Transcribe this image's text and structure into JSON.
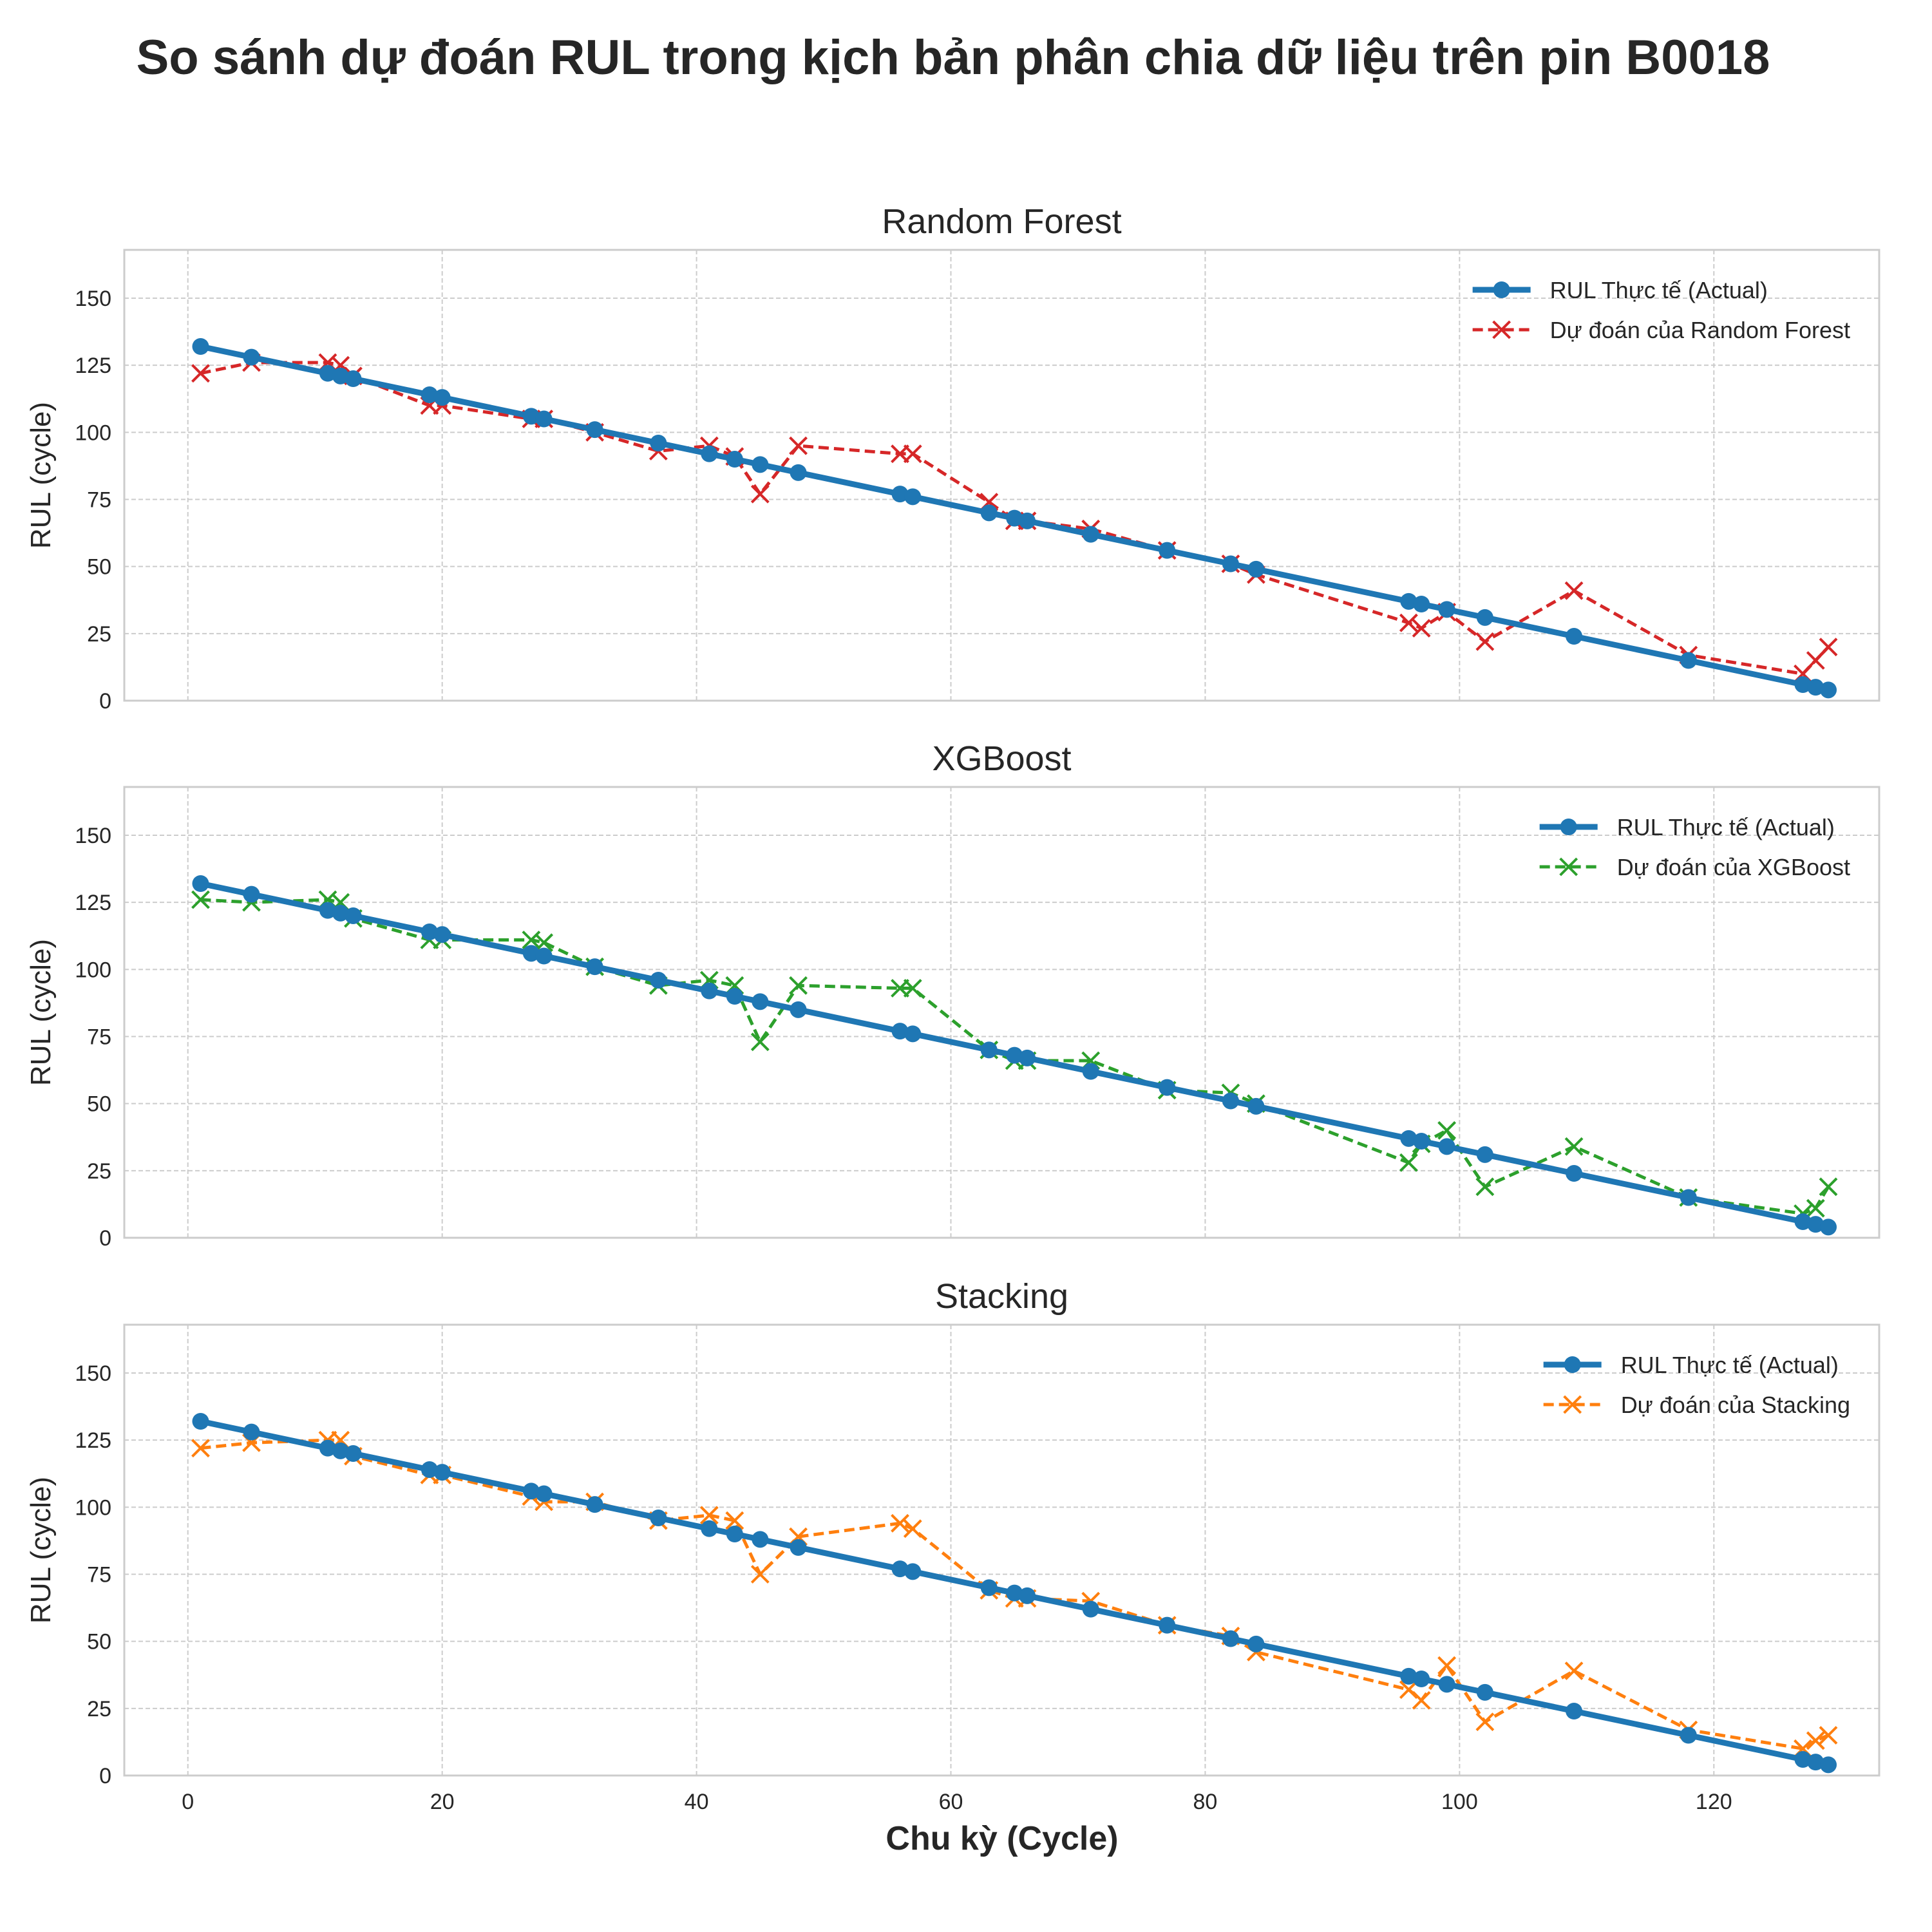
{
  "figure": {
    "suptitle": "So sánh dự đoán RUL trong kịch bản phân chia dữ liệu trên pin B0018",
    "xlabel": "Chu kỳ (Cycle)"
  },
  "colors": {
    "actual": "#1f77b4",
    "rf": "#d62728",
    "xgb": "#2ca02c",
    "stack": "#ff7f0e",
    "grid": "#cccccc",
    "spine": "#cccccc",
    "text": "#262626"
  },
  "chart_data": [
    {
      "type": "line",
      "title": "Random Forest",
      "ylabel": "RUL (cycle)",
      "xlim": [
        -5,
        133
      ],
      "ylim": [
        0,
        168
      ],
      "xticks": [
        0,
        20,
        40,
        60,
        80,
        100,
        120
      ],
      "yticks": [
        0,
        25,
        50,
        75,
        100,
        125,
        150
      ],
      "grid": true,
      "legend_position": "top-right",
      "x": [
        1,
        5,
        11,
        12,
        13,
        19,
        20,
        27,
        28,
        32,
        37,
        41,
        43,
        45,
        48,
        56,
        57,
        63,
        65,
        66,
        71,
        77,
        82,
        84,
        96,
        97,
        99,
        102,
        109,
        118,
        127,
        128,
        129
      ],
      "series": [
        {
          "name": "RUL Thực tế (Actual)",
          "style": "solid-circle",
          "values": [
            132,
            128,
            122,
            121,
            120,
            114,
            113,
            106,
            105,
            101,
            96,
            92,
            90,
            88,
            85,
            77,
            76,
            70,
            68,
            67,
            62,
            56,
            51,
            49,
            37,
            36,
            34,
            31,
            24,
            15,
            6,
            5,
            4
          ]
        },
        {
          "name": "Dự đoán của Random Forest",
          "style": "dashed-x",
          "values": [
            122,
            126,
            126,
            125,
            121,
            110,
            110,
            105,
            105,
            100,
            93,
            95,
            91,
            77,
            95,
            92,
            92,
            74,
            67,
            67,
            64,
            56,
            51,
            47,
            29,
            27,
            33,
            22,
            41,
            17,
            10,
            15,
            20
          ]
        }
      ]
    },
    {
      "type": "line",
      "title": "XGBoost",
      "ylabel": "RUL (cycle)",
      "xlim": [
        -5,
        133
      ],
      "ylim": [
        0,
        168
      ],
      "xticks": [
        0,
        20,
        40,
        60,
        80,
        100,
        120
      ],
      "yticks": [
        0,
        25,
        50,
        75,
        100,
        125,
        150
      ],
      "grid": true,
      "legend_position": "top-right",
      "x": [
        1,
        5,
        11,
        12,
        13,
        19,
        20,
        27,
        28,
        32,
        37,
        41,
        43,
        45,
        48,
        56,
        57,
        63,
        65,
        66,
        71,
        77,
        82,
        84,
        96,
        97,
        99,
        102,
        109,
        118,
        127,
        128,
        129
      ],
      "series": [
        {
          "name": "RUL Thực tế (Actual)",
          "style": "solid-circle",
          "values": [
            132,
            128,
            122,
            121,
            120,
            114,
            113,
            106,
            105,
            101,
            96,
            92,
            90,
            88,
            85,
            77,
            76,
            70,
            68,
            67,
            62,
            56,
            51,
            49,
            37,
            36,
            34,
            31,
            24,
            15,
            6,
            5,
            4
          ]
        },
        {
          "name": "Dự đoán của XGBoost",
          "style": "dashed-x",
          "values": [
            126,
            125,
            126,
            125,
            119,
            111,
            111,
            111,
            110,
            101,
            94,
            96,
            94,
            73,
            94,
            93,
            93,
            70,
            66,
            66,
            66,
            55,
            54,
            50,
            28,
            35,
            40,
            19,
            34,
            15,
            9,
            11,
            19
          ]
        }
      ]
    },
    {
      "type": "line",
      "title": "Stacking",
      "ylabel": "RUL (cycle)",
      "xlim": [
        -5,
        133
      ],
      "ylim": [
        0,
        168
      ],
      "xticks": [
        0,
        20,
        40,
        60,
        80,
        100,
        120
      ],
      "yticks": [
        0,
        25,
        50,
        75,
        100,
        125,
        150
      ],
      "grid": true,
      "legend_position": "top-right",
      "x": [
        1,
        5,
        11,
        12,
        13,
        19,
        20,
        27,
        28,
        32,
        37,
        41,
        43,
        45,
        48,
        56,
        57,
        63,
        65,
        66,
        71,
        77,
        82,
        84,
        96,
        97,
        99,
        102,
        109,
        118,
        127,
        128,
        129
      ],
      "series": [
        {
          "name": "RUL Thực tế (Actual)",
          "style": "solid-circle",
          "values": [
            132,
            128,
            122,
            121,
            120,
            114,
            113,
            106,
            105,
            101,
            96,
            92,
            90,
            88,
            85,
            77,
            76,
            70,
            68,
            67,
            62,
            56,
            51,
            49,
            37,
            36,
            34,
            31,
            24,
            15,
            6,
            5,
            4
          ]
        },
        {
          "name": "Dự đoán của Stacking",
          "style": "dashed-x",
          "values": [
            122,
            124,
            125,
            125,
            119,
            112,
            112,
            104,
            102,
            102,
            95,
            97,
            95,
            75,
            89,
            94,
            92,
            69,
            66,
            66,
            65,
            56,
            52,
            46,
            32,
            28,
            41,
            20,
            39,
            17,
            10,
            13,
            15
          ]
        }
      ]
    }
  ]
}
